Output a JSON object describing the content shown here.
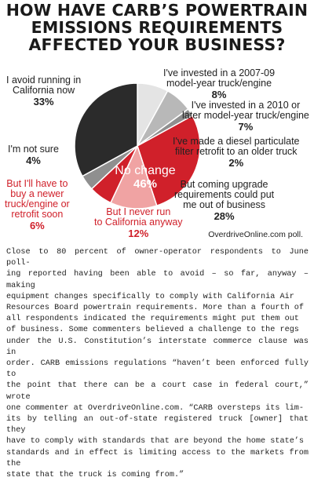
{
  "headline": [
    "HOW HAVE CARB’S POWERTRAIN",
    "EMISSIONS REQUIREMENTS",
    "AFFECTED YOUR BUSINESS?"
  ],
  "colors": {
    "black": "#2b2b2b",
    "light_gray": "#e4e4e4",
    "mid_gray": "#b8b8b8",
    "dark_gray": "#8f8f8f",
    "red": "#d0202a",
    "light_red": "#f0a3a3",
    "red_label": "#d0202a"
  },
  "chart_data": {
    "type": "pie",
    "title": "",
    "center_label": "No change",
    "center_value": "46%",
    "slices": [
      {
        "label": "I've invested in a 2007-09 model-year truck/engine",
        "value": 8,
        "display": "8%"
      },
      {
        "label": "I've invested in a 2010 or later model-year truck/engine",
        "value": 7,
        "display": "7%"
      },
      {
        "label": "I've made a diesel particulate filter retrofit to an older truck",
        "value": 2,
        "display": "2%"
      },
      {
        "label": "But coming upgrade requirements could put me out of business",
        "value": 28,
        "display": "28%"
      },
      {
        "label": "But I never run to California anyway",
        "value": 12,
        "display": "12%"
      },
      {
        "label": "But I'll have to buy a newer truck/engine or retrofit soon",
        "value": 6,
        "display": "6%"
      },
      {
        "label": "I'm not sure",
        "value": 4,
        "display": "4%"
      },
      {
        "label": "I avoid running in California now",
        "value": 33,
        "display": "33%"
      }
    ]
  },
  "labels": {
    "invested_0709": [
      "I've invested in a 2007-09",
      "model-year truck/engine"
    ],
    "invested_2010": [
      "I've invested in a 2010 or",
      "later model-year truck/engine"
    ],
    "dpf": [
      "I've made a diesel particulate",
      "filter retrofit to an older truck"
    ],
    "out_of_business": [
      "But coming upgrade",
      "requirements could put",
      "me out of business"
    ],
    "never_run": [
      "But I never run",
      "to California anyway"
    ],
    "buy_newer": [
      "But I'll have to",
      "buy a newer",
      "truck/engine or",
      "retrofit soon"
    ],
    "not_sure": [
      "I'm not sure"
    ],
    "avoid": [
      "I avoid running in",
      "California now"
    ]
  },
  "source": "OverdriveOnline.com poll.",
  "body": [
    "Close to 80 percent of owner-operator respondents to June poll-",
    "ing reported having been able to avoid – so far, anyway – making",
    "equipment changes specifically to comply with California Air",
    "Resources Board powertrain requirements. More than a fourth of",
    "all respondents indicated the requirements might put them out",
    "of business. Some commenters believed a challenge to the regs",
    "under the U.S. Constitution’s interstate commerce clause was in",
    "order. CARB emissions regulations “haven’t been enforced fully to",
    "the point that there can be a court case in federal court,” wrote",
    "one commenter at OverdriveOnline.com. “CARB oversteps its lim-",
    "its by telling an out-of-state registered truck [owner] that they",
    "have to comply with standards that are beyond the home state’s",
    "standards and in effect is limiting access to the markets from the",
    "state that the truck is coming from.”"
  ]
}
